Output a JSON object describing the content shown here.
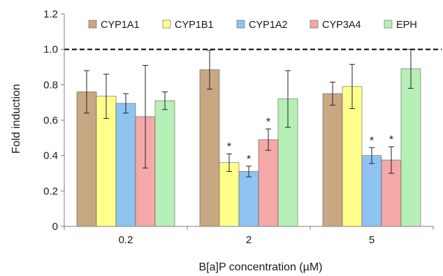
{
  "chart_data": {
    "type": "bar",
    "categories": [
      "0.2",
      "2",
      "5"
    ],
    "xlabel": "B[a]P concentration (µM)",
    "ylabel": "Fold induction",
    "ylim": [
      0,
      1.2
    ],
    "yticks": [
      "0",
      "0.2",
      "0.4",
      "0.6",
      "0.8",
      "1.0",
      "1.2"
    ],
    "reference_line": 1.0,
    "legend_position": "top",
    "significance_marker": "*",
    "series": [
      {
        "name": "CYP1A1",
        "color": "#c8a882",
        "values": [
          0.76,
          0.885,
          0.75
        ],
        "errors": [
          0.12,
          0.11,
          0.065
        ],
        "significant": [
          false,
          false,
          false
        ]
      },
      {
        "name": "CYP1B1",
        "color": "#ffff8c",
        "values": [
          0.735,
          0.36,
          0.79
        ],
        "errors": [
          0.125,
          0.05,
          0.125
        ],
        "significant": [
          false,
          true,
          false
        ]
      },
      {
        "name": "CYP1A2",
        "color": "#8fc3f0",
        "values": [
          0.695,
          0.31,
          0.4
        ],
        "errors": [
          0.055,
          0.03,
          0.045
        ],
        "significant": [
          false,
          true,
          true
        ]
      },
      {
        "name": "CYP3A4",
        "color": "#f4a8a8",
        "values": [
          0.62,
          0.49,
          0.375
        ],
        "errors": [
          0.29,
          0.06,
          0.075
        ],
        "significant": [
          false,
          true,
          true
        ]
      },
      {
        "name": "EPH",
        "color": "#b7f0b7",
        "values": [
          0.71,
          0.72,
          0.89
        ],
        "errors": [
          0.05,
          0.16,
          0.11
        ],
        "significant": [
          false,
          false,
          false
        ]
      }
    ]
  }
}
